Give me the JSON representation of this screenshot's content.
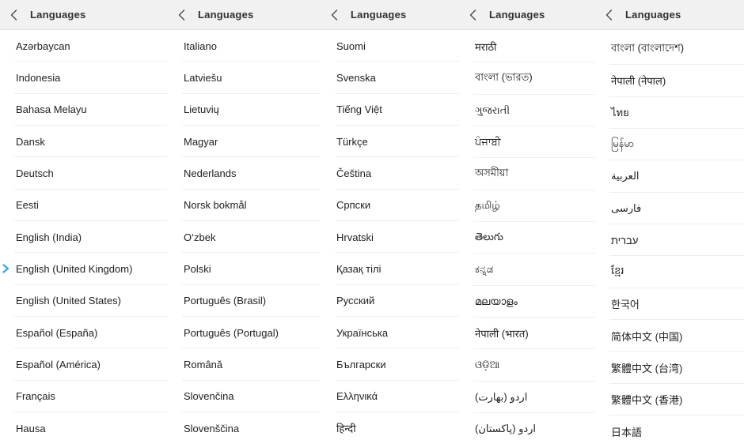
{
  "colors": {
    "selected_indicator": "#2fa7e3",
    "header_bg": "#f1f1f1",
    "header_text": "#2e3033",
    "item_text": "#202124",
    "divider": "#efefef",
    "back_icon": "#4a4a4a"
  },
  "icons": {
    "back": "chevron-left-icon",
    "selected": "chevron-right-icon"
  },
  "panels": [
    {
      "header": {
        "title": "Languages"
      },
      "items": [
        {
          "label": "Azərbaycan",
          "selected": false
        },
        {
          "label": "Indonesia",
          "selected": false
        },
        {
          "label": "Bahasa Melayu",
          "selected": false
        },
        {
          "label": "Dansk",
          "selected": false
        },
        {
          "label": "Deutsch",
          "selected": false
        },
        {
          "label": "Eesti",
          "selected": false
        },
        {
          "label": "English (India)",
          "selected": false
        },
        {
          "label": "English (United Kingdom)",
          "selected": true
        },
        {
          "label": "English (United States)",
          "selected": false
        },
        {
          "label": "Español (España)",
          "selected": false
        },
        {
          "label": "Español (América)",
          "selected": false
        },
        {
          "label": "Français",
          "selected": false
        },
        {
          "label": "Hausa",
          "selected": false
        }
      ]
    },
    {
      "header": {
        "title": "Languages"
      },
      "items": [
        {
          "label": "Italiano",
          "selected": false
        },
        {
          "label": "Latviešu",
          "selected": false
        },
        {
          "label": "Lietuvių",
          "selected": false
        },
        {
          "label": "Magyar",
          "selected": false
        },
        {
          "label": "Nederlands",
          "selected": false
        },
        {
          "label": "Norsk bokmål",
          "selected": false
        },
        {
          "label": "O‘zbek",
          "selected": false
        },
        {
          "label": "Polski",
          "selected": false
        },
        {
          "label": "Português (Brasil)",
          "selected": false
        },
        {
          "label": "Português (Portugal)",
          "selected": false
        },
        {
          "label": "Română",
          "selected": false
        },
        {
          "label": "Slovenčina",
          "selected": false
        },
        {
          "label": "Slovenščina",
          "selected": false
        }
      ]
    },
    {
      "header": {
        "title": "Languages"
      },
      "items": [
        {
          "label": "Suomi",
          "selected": false
        },
        {
          "label": "Svenska",
          "selected": false
        },
        {
          "label": "Tiếng Việt",
          "selected": false
        },
        {
          "label": "Türkçe",
          "selected": false
        },
        {
          "label": "Čeština",
          "selected": false
        },
        {
          "label": "Српски",
          "selected": false
        },
        {
          "label": "Hrvatski",
          "selected": false
        },
        {
          "label": "Қазақ тілі",
          "selected": false
        },
        {
          "label": "Русский",
          "selected": false
        },
        {
          "label": "Українська",
          "selected": false
        },
        {
          "label": "Български",
          "selected": false
        },
        {
          "label": "Ελληνικά",
          "selected": false
        },
        {
          "label": "हिन्दी",
          "selected": false
        }
      ]
    },
    {
      "header": {
        "title": "Languages"
      },
      "items": [
        {
          "label": "मराठी",
          "selected": false
        },
        {
          "label": "বাংলা (ভারত)",
          "selected": false
        },
        {
          "label": "ગુજરાતી",
          "selected": false
        },
        {
          "label": "ਪੰਜਾਬੀ",
          "selected": false
        },
        {
          "label": "অসমীয়া",
          "selected": false
        },
        {
          "label": "தமிழ்",
          "selected": false
        },
        {
          "label": "తెలుగు",
          "selected": false
        },
        {
          "label": "ಕನ್ನಡ",
          "selected": false
        },
        {
          "label": "മലയാളം",
          "selected": false
        },
        {
          "label": "नेपाली (भारत)",
          "selected": false
        },
        {
          "label": "ଓଡ଼ିଆ",
          "selected": false
        },
        {
          "label": "اردو (بھارت)",
          "selected": false
        },
        {
          "label": "اردو (پاکستان)",
          "selected": false
        }
      ]
    },
    {
      "header": {
        "title": "Languages"
      },
      "items": [
        {
          "label": "বাংলা (বাংলাদেশ)",
          "selected": false
        },
        {
          "label": "नेपाली (नेपाल)",
          "selected": false
        },
        {
          "label": "ไทย",
          "selected": false
        },
        {
          "label": "မြန်မာ",
          "selected": false
        },
        {
          "label": "العربية",
          "selected": false
        },
        {
          "label": "فارسی",
          "selected": false
        },
        {
          "label": "עברית",
          "selected": false
        },
        {
          "label": "ខ្មែរ",
          "selected": false
        },
        {
          "label": "한국어",
          "selected": false
        },
        {
          "label": "简体中文 (中国)",
          "selected": false
        },
        {
          "label": "繁體中文 (台湾)",
          "selected": false
        },
        {
          "label": "繁體中文 (香港)",
          "selected": false
        },
        {
          "label": "日本語",
          "selected": false
        }
      ]
    }
  ]
}
